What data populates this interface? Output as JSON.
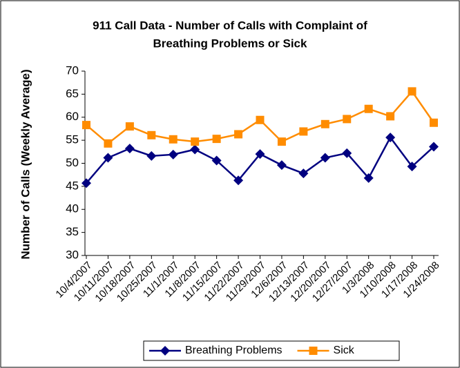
{
  "chart_data": {
    "type": "line",
    "title": [
      "911 Call Data - Number of Calls with Complaint of",
      "Breathing Problems or Sick"
    ],
    "y_label": "Number of Calls (Weekly Average)",
    "categories": [
      "10/4/2007",
      "10/11/2007",
      "10/18/2007",
      "10/25/2007",
      "11/1/2007",
      "11/8/2007",
      "11/15/2007",
      "11/22/2007",
      "11/29/2007",
      "12/6/2007",
      "12/13/2007",
      "12/20/2007",
      "12/27/2007",
      "1/3/2008",
      "1/10/2008",
      "1/17/2008",
      "1/24/2008"
    ],
    "series": [
      {
        "name": "Breathing Problems",
        "color": "#000080",
        "marker": "diamond",
        "values": [
          45.7,
          51.2,
          53.2,
          51.6,
          51.9,
          53.0,
          50.6,
          46.3,
          52.0,
          49.6,
          47.8,
          51.2,
          52.2,
          46.8,
          55.6,
          49.3,
          53.6
        ]
      },
      {
        "name": "Sick",
        "color": "#ff8c00",
        "marker": "square",
        "values": [
          58.3,
          54.3,
          58.0,
          56.1,
          55.2,
          54.7,
          55.3,
          56.3,
          59.4,
          54.7,
          56.9,
          58.5,
          59.6,
          61.8,
          60.2,
          65.6,
          58.8
        ]
      }
    ],
    "ylim": [
      30,
      70
    ],
    "yticks": [
      30,
      35,
      40,
      45,
      50,
      55,
      60,
      65,
      70
    ],
    "grid": false,
    "legend": "bottom"
  }
}
